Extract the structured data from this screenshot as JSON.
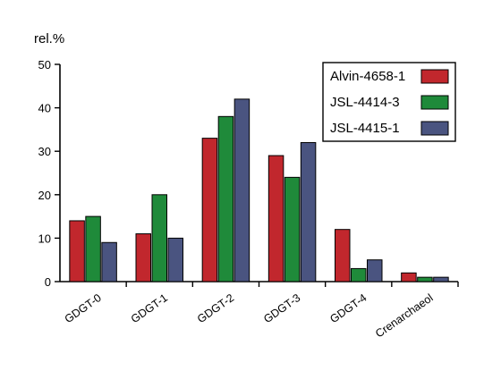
{
  "chart_data": {
    "type": "bar",
    "title": "",
    "xlabel": "",
    "ylabel": "rel.%",
    "ylim": [
      0,
      50
    ],
    "yticks": [
      0,
      10,
      20,
      30,
      40,
      50
    ],
    "grid": false,
    "legend_position": "top-right",
    "categories": [
      "GDGT-0",
      "GDGT-1",
      "GDGT-2",
      "GDGT-3",
      "GDGT-4",
      "Crenarchaeol"
    ],
    "series": [
      {
        "name": "Alvin-4658-1",
        "color": "#c1272d",
        "values": [
          14,
          11,
          33,
          29,
          12,
          2
        ]
      },
      {
        "name": "JSL-4414-3",
        "color": "#1f8a3a",
        "values": [
          15,
          20,
          38,
          24,
          3,
          1
        ]
      },
      {
        "name": "JSL-4415-1",
        "color": "#4a5480",
        "values": [
          9,
          10,
          42,
          32,
          5,
          1
        ]
      }
    ]
  }
}
